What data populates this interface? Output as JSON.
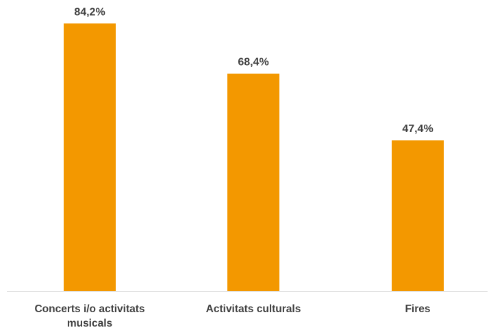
{
  "chart_data": {
    "type": "bar",
    "categories": [
      [
        "Concerts i/o activitats",
        "musicals"
      ],
      [
        "Activitats culturals"
      ],
      [
        "Fires"
      ]
    ],
    "values": [
      84.2,
      68.4,
      47.4
    ],
    "value_labels": [
      "84,2%",
      "68,4%",
      "47,4%"
    ],
    "unit": "%",
    "ylim": [
      0,
      100
    ],
    "grid": false,
    "legend": "none",
    "bar_color": "#F39800",
    "axis_color": "#D9D9D9",
    "label_color": "#404040"
  }
}
